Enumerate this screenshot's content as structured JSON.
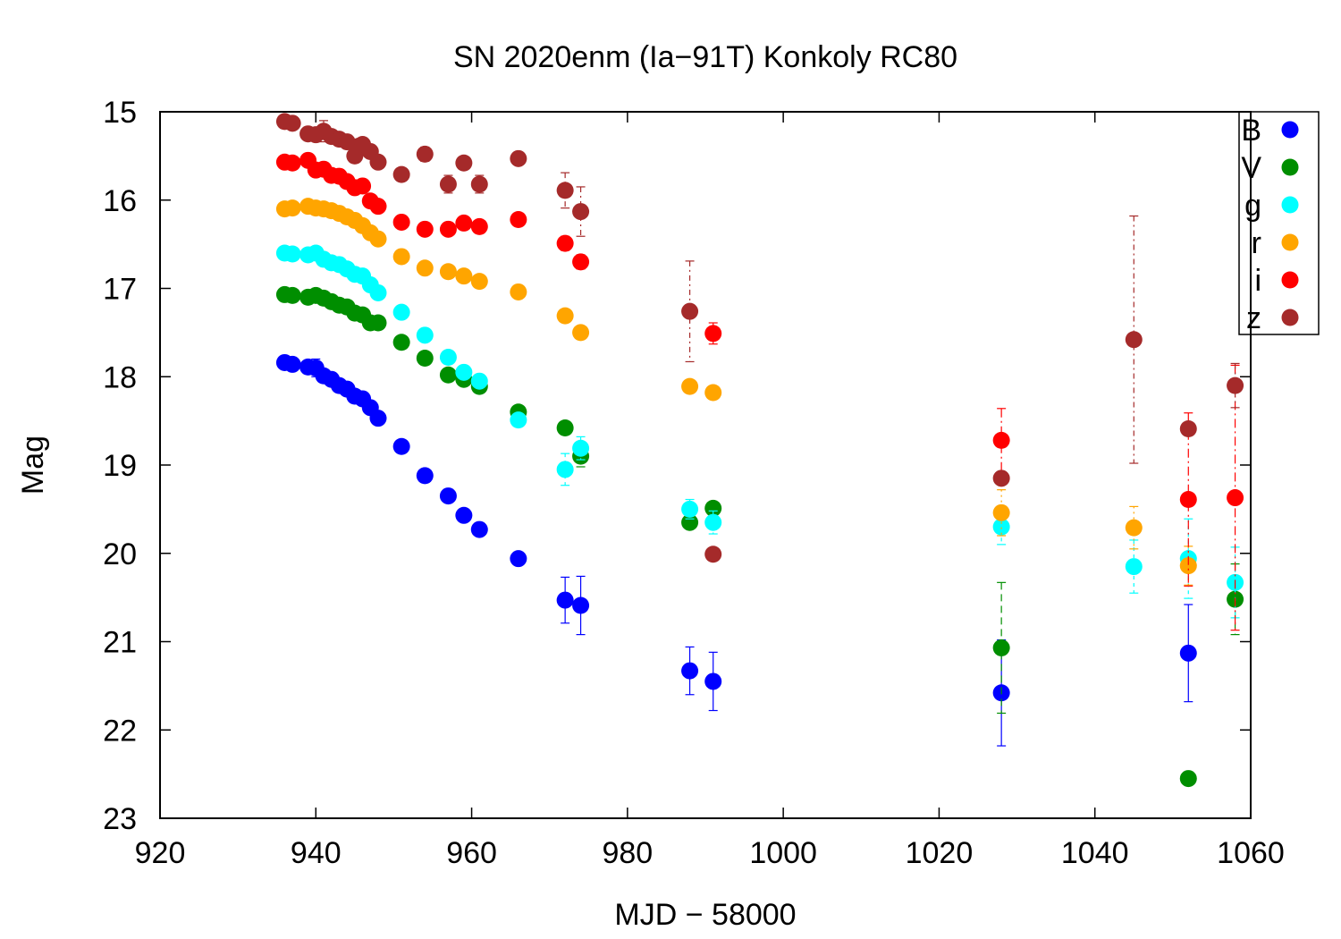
{
  "chart_data": {
    "type": "scatter",
    "title": "SN 2020enm (Ia−91T) Konkoly RC80",
    "xlabel": "MJD − 58000",
    "ylabel": "Mag",
    "xlim": [
      920,
      1060
    ],
    "ylim": [
      15,
      23
    ],
    "y_inverted": true,
    "grid": false,
    "legend_position": "top-right",
    "x_ticks": [
      "920",
      "940",
      "960",
      "980",
      "1000",
      "1020",
      "1040",
      "1060"
    ],
    "y_ticks": [
      "15",
      "16",
      "17",
      "18",
      "19",
      "20",
      "21",
      "22",
      "23"
    ],
    "series": [
      {
        "name": "B",
        "color": "#0000ff",
        "points": [
          [
            936.0,
            17.84,
            0.04
          ],
          [
            937.0,
            17.86,
            0.04
          ],
          [
            939.0,
            17.89,
            0.05
          ],
          [
            940.0,
            17.9,
            0.1
          ],
          [
            941.0,
            17.99,
            0.06
          ],
          [
            942.0,
            18.03,
            0.06
          ],
          [
            943.0,
            18.1,
            0.06
          ],
          [
            944.0,
            18.14,
            0.06
          ],
          [
            945.0,
            18.22,
            0.06
          ],
          [
            946.0,
            18.25,
            0.06
          ],
          [
            947.0,
            18.35,
            0.06
          ],
          [
            948.0,
            18.47,
            0.06
          ],
          [
            951.0,
            18.79,
            0.06
          ],
          [
            954.0,
            19.12,
            0.06
          ],
          [
            957.0,
            19.35,
            0.06
          ],
          [
            959.0,
            19.57,
            0.06
          ],
          [
            961.0,
            19.73,
            0.06
          ],
          [
            966.0,
            20.06,
            0.06
          ],
          [
            972.0,
            20.53,
            0.26
          ],
          [
            974.0,
            20.59,
            0.33
          ],
          [
            988.0,
            21.33,
            0.27
          ],
          [
            991.0,
            21.45,
            0.33
          ],
          [
            1028.0,
            21.58,
            0.6
          ],
          [
            1052.0,
            21.13,
            0.55
          ]
        ]
      },
      {
        "name": "V",
        "color": "#008e00",
        "points": [
          [
            936.0,
            17.07,
            0.03
          ],
          [
            937.0,
            17.08,
            0.03
          ],
          [
            939.0,
            17.1,
            0.03
          ],
          [
            940.0,
            17.08,
            0.03
          ],
          [
            941.0,
            17.11,
            0.03
          ],
          [
            942.0,
            17.15,
            0.03
          ],
          [
            943.0,
            17.19,
            0.03
          ],
          [
            944.0,
            17.21,
            0.03
          ],
          [
            945.0,
            17.28,
            0.03
          ],
          [
            946.0,
            17.3,
            0.03
          ],
          [
            947.0,
            17.39,
            0.03
          ],
          [
            948.0,
            17.39,
            0.03
          ],
          [
            951.0,
            17.61,
            0.03
          ],
          [
            954.0,
            17.79,
            0.03
          ],
          [
            957.0,
            17.98,
            0.03
          ],
          [
            959.0,
            18.03,
            0.03
          ],
          [
            961.0,
            18.11,
            0.03
          ],
          [
            966.0,
            18.4,
            0.03
          ],
          [
            972.0,
            18.58,
            0.05
          ],
          [
            974.0,
            18.9,
            0.12
          ],
          [
            988.0,
            19.65,
            0.05
          ],
          [
            991.0,
            19.49,
            0.05
          ],
          [
            1028.0,
            21.07,
            0.74
          ],
          [
            1052.0,
            22.55,
            0.05
          ],
          [
            1058.0,
            20.52,
            0.4
          ]
        ]
      },
      {
        "name": "g",
        "color": "#00ffff",
        "points": [
          [
            936.0,
            16.6,
            0.03
          ],
          [
            937.0,
            16.61,
            0.03
          ],
          [
            939.0,
            16.62,
            0.03
          ],
          [
            940.0,
            16.6,
            0.03
          ],
          [
            941.0,
            16.67,
            0.03
          ],
          [
            942.0,
            16.71,
            0.03
          ],
          [
            943.0,
            16.73,
            0.03
          ],
          [
            944.0,
            16.78,
            0.03
          ],
          [
            945.0,
            16.84,
            0.03
          ],
          [
            946.0,
            16.86,
            0.03
          ],
          [
            947.0,
            16.96,
            0.03
          ],
          [
            948.0,
            17.05,
            0.03
          ],
          [
            951.0,
            17.27,
            0.03
          ],
          [
            954.0,
            17.53,
            0.03
          ],
          [
            957.0,
            17.78,
            0.03
          ],
          [
            959.0,
            17.95,
            0.03
          ],
          [
            961.0,
            18.05,
            0.03
          ],
          [
            966.0,
            18.49,
            0.03
          ],
          [
            972.0,
            19.05,
            0.18
          ],
          [
            974.0,
            18.81,
            0.13
          ],
          [
            988.0,
            19.5,
            0.11
          ],
          [
            991.0,
            19.65,
            0.13
          ],
          [
            1028.0,
            19.7,
            0.2
          ],
          [
            1045.0,
            20.15,
            0.3
          ],
          [
            1052.0,
            20.06,
            0.45
          ],
          [
            1058.0,
            20.33,
            0.4
          ]
        ]
      },
      {
        "name": "r",
        "color": "#ffa500",
        "points": [
          [
            936.0,
            16.1,
            0.03
          ],
          [
            937.0,
            16.09,
            0.03
          ],
          [
            939.0,
            16.07,
            0.03
          ],
          [
            940.0,
            16.09,
            0.03
          ],
          [
            941.0,
            16.1,
            0.03
          ],
          [
            942.0,
            16.12,
            0.03
          ],
          [
            943.0,
            16.15,
            0.03
          ],
          [
            944.0,
            16.19,
            0.03
          ],
          [
            945.0,
            16.23,
            0.03
          ],
          [
            946.0,
            16.29,
            0.03
          ],
          [
            947.0,
            16.37,
            0.03
          ],
          [
            948.0,
            16.44,
            0.03
          ],
          [
            951.0,
            16.64,
            0.03
          ],
          [
            954.0,
            16.77,
            0.03
          ],
          [
            957.0,
            16.81,
            0.03
          ],
          [
            959.0,
            16.86,
            0.03
          ],
          [
            961.0,
            16.92,
            0.03
          ],
          [
            966.0,
            17.04,
            0.03
          ],
          [
            972.0,
            17.31,
            0.04
          ],
          [
            974.0,
            17.5,
            0.04
          ],
          [
            988.0,
            18.11,
            0.04
          ],
          [
            991.0,
            18.18,
            0.04
          ],
          [
            1028.0,
            19.54,
            0.26
          ],
          [
            1045.0,
            19.71,
            0.24
          ],
          [
            1052.0,
            20.14,
            0.22
          ]
        ]
      },
      {
        "name": "i",
        "color": "#ff0000",
        "points": [
          [
            936.0,
            15.57,
            0.03
          ],
          [
            937.0,
            15.58,
            0.03
          ],
          [
            939.0,
            15.55,
            0.03
          ],
          [
            940.0,
            15.66,
            0.03
          ],
          [
            941.0,
            15.65,
            0.03
          ],
          [
            942.0,
            15.72,
            0.03
          ],
          [
            943.0,
            15.73,
            0.03
          ],
          [
            944.0,
            15.79,
            0.03
          ],
          [
            945.0,
            15.86,
            0.03
          ],
          [
            946.0,
            15.84,
            0.03
          ],
          [
            947.0,
            16.01,
            0.03
          ],
          [
            948.0,
            16.07,
            0.03
          ],
          [
            951.0,
            16.25,
            0.03
          ],
          [
            954.0,
            16.33,
            0.03
          ],
          [
            957.0,
            16.33,
            0.03
          ],
          [
            959.0,
            16.26,
            0.03
          ],
          [
            961.0,
            16.3,
            0.03
          ],
          [
            966.0,
            16.22,
            0.03
          ],
          [
            972.0,
            16.49,
            0.08
          ],
          [
            974.0,
            16.7,
            0.08
          ],
          [
            991.0,
            17.51,
            0.12
          ],
          [
            1028.0,
            18.72,
            0.36
          ],
          [
            1052.0,
            19.39,
            0.98
          ],
          [
            1058.0,
            19.37,
            1.5
          ]
        ]
      },
      {
        "name": "z",
        "color": "#a52a2a",
        "points": [
          [
            936.0,
            15.11,
            0.03
          ],
          [
            937.0,
            15.13,
            0.03
          ],
          [
            939.0,
            15.25,
            0.03
          ],
          [
            940.0,
            15.26,
            0.05
          ],
          [
            941.0,
            15.22,
            0.12
          ],
          [
            942.0,
            15.28,
            0.05
          ],
          [
            943.0,
            15.31,
            0.05
          ],
          [
            944.0,
            15.34,
            0.05
          ],
          [
            945.0,
            15.5,
            0.06
          ],
          [
            945.5,
            15.39,
            0.06
          ],
          [
            946.0,
            15.37,
            0.06
          ],
          [
            947.0,
            15.45,
            0.06
          ],
          [
            948.0,
            15.57,
            0.06
          ],
          [
            951.0,
            15.71,
            0.06
          ],
          [
            954.0,
            15.48,
            0.08
          ],
          [
            957.0,
            15.82,
            0.1
          ],
          [
            959.0,
            15.58,
            0.06
          ],
          [
            961.0,
            15.82,
            0.1
          ],
          [
            966.0,
            15.53,
            0.06
          ],
          [
            972.0,
            15.89,
            0.2
          ],
          [
            974.0,
            16.13,
            0.28
          ],
          [
            988.0,
            17.26,
            0.57
          ],
          [
            991.0,
            20.01,
            0.05
          ],
          [
            1028.0,
            19.15,
            0.05
          ],
          [
            1045.0,
            17.58,
            1.4
          ],
          [
            1052.0,
            18.59,
            0.05
          ],
          [
            1058.0,
            18.1,
            0.25
          ]
        ]
      }
    ]
  }
}
